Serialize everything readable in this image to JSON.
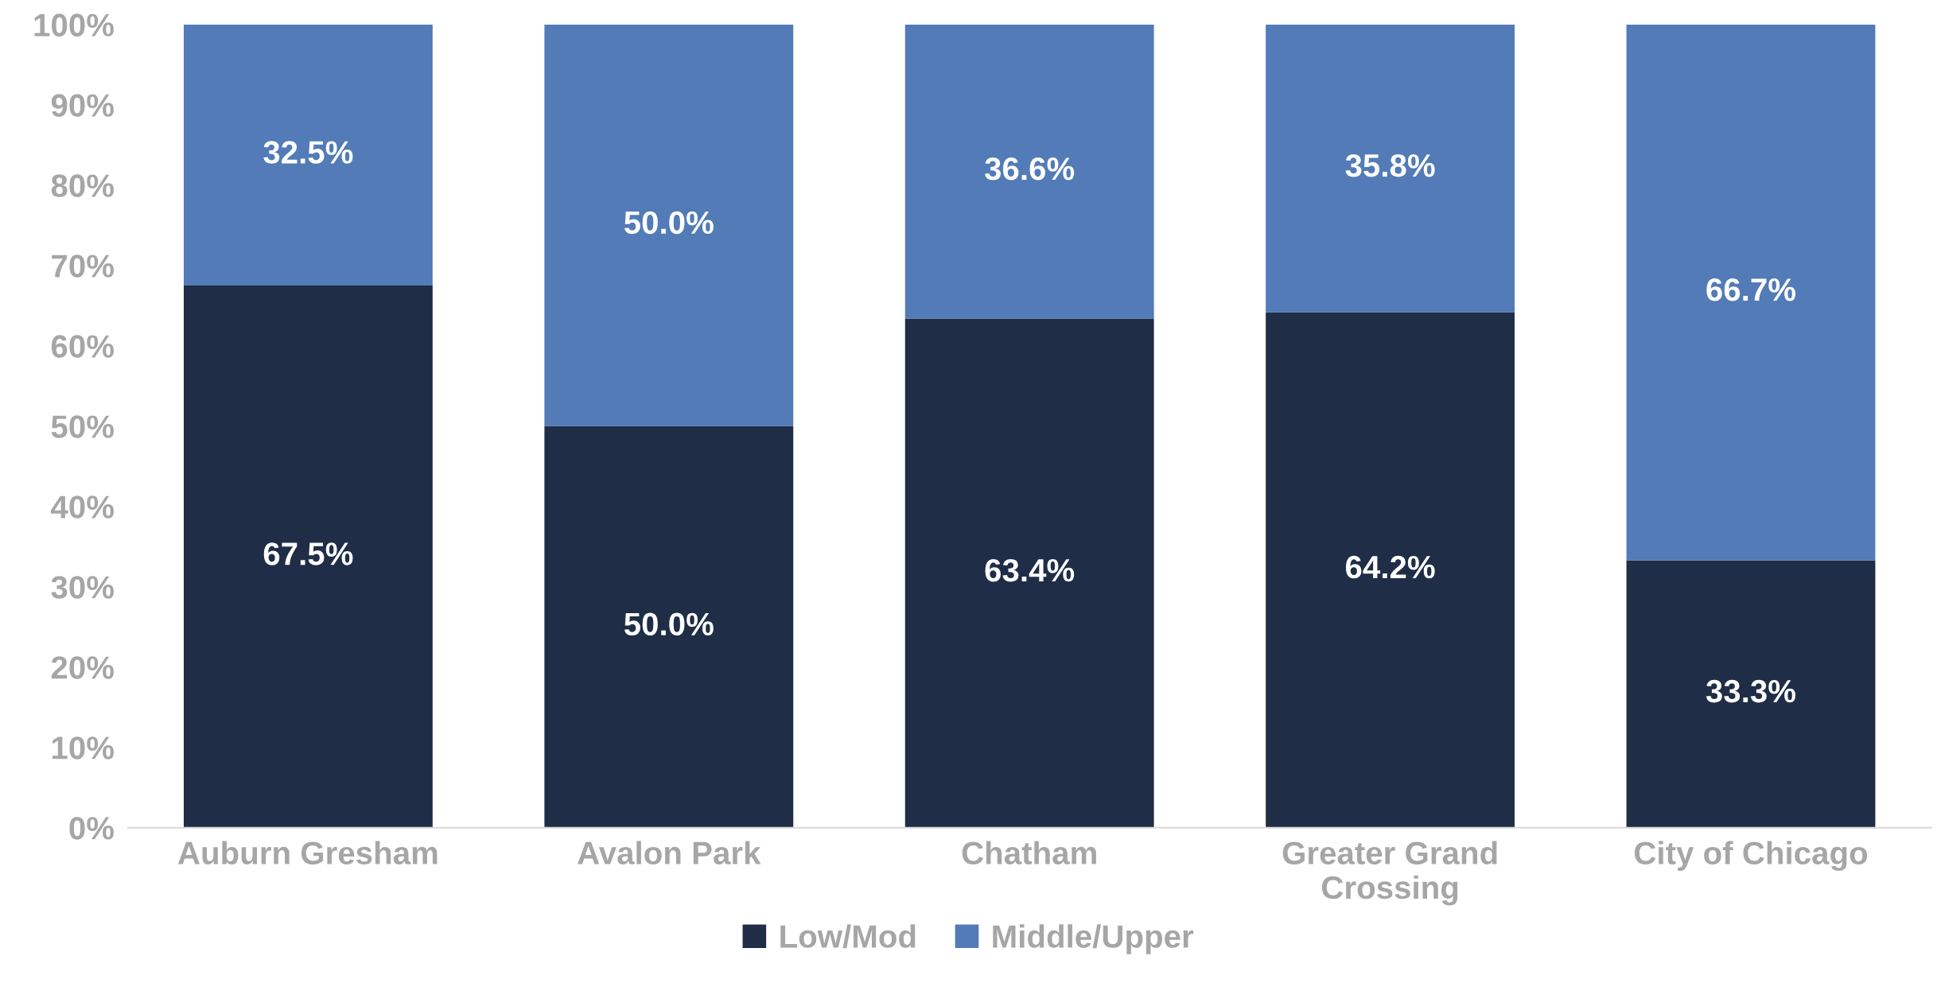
{
  "chart_data": {
    "type": "bar",
    "stacked": true,
    "categories": [
      "Auburn Gresham",
      "Avalon Park",
      "Chatham",
      "Greater Grand\nCrossing",
      "City of Chicago"
    ],
    "series": [
      {
        "name": "Low/Mod",
        "color": "#1f2d47",
        "values": [
          67.5,
          50.0,
          63.4,
          64.2,
          33.3
        ],
        "value_labels": [
          "67.5%",
          "50.0%",
          "63.4%",
          "64.2%",
          "33.3%"
        ]
      },
      {
        "name": "Middle/Upper",
        "color": "#527bb7",
        "values": [
          32.5,
          50.0,
          36.6,
          35.8,
          66.7
        ],
        "value_labels": [
          "32.5%",
          "50.0%",
          "36.6%",
          "35.8%",
          "66.7%"
        ]
      }
    ],
    "ylim": [
      0,
      100
    ],
    "yticks": [
      {
        "value": 0,
        "label": "0%"
      },
      {
        "value": 10,
        "label": "10%"
      },
      {
        "value": 20,
        "label": "20%"
      },
      {
        "value": 30,
        "label": "30%"
      },
      {
        "value": 40,
        "label": "40%"
      },
      {
        "value": 50,
        "label": "50%"
      },
      {
        "value": 60,
        "label": "60%"
      },
      {
        "value": 70,
        "label": "70%"
      },
      {
        "value": 80,
        "label": "80%"
      },
      {
        "value": 90,
        "label": "90%"
      },
      {
        "value": 100,
        "label": "100%"
      }
    ],
    "grid": false,
    "legend": "bottom"
  }
}
